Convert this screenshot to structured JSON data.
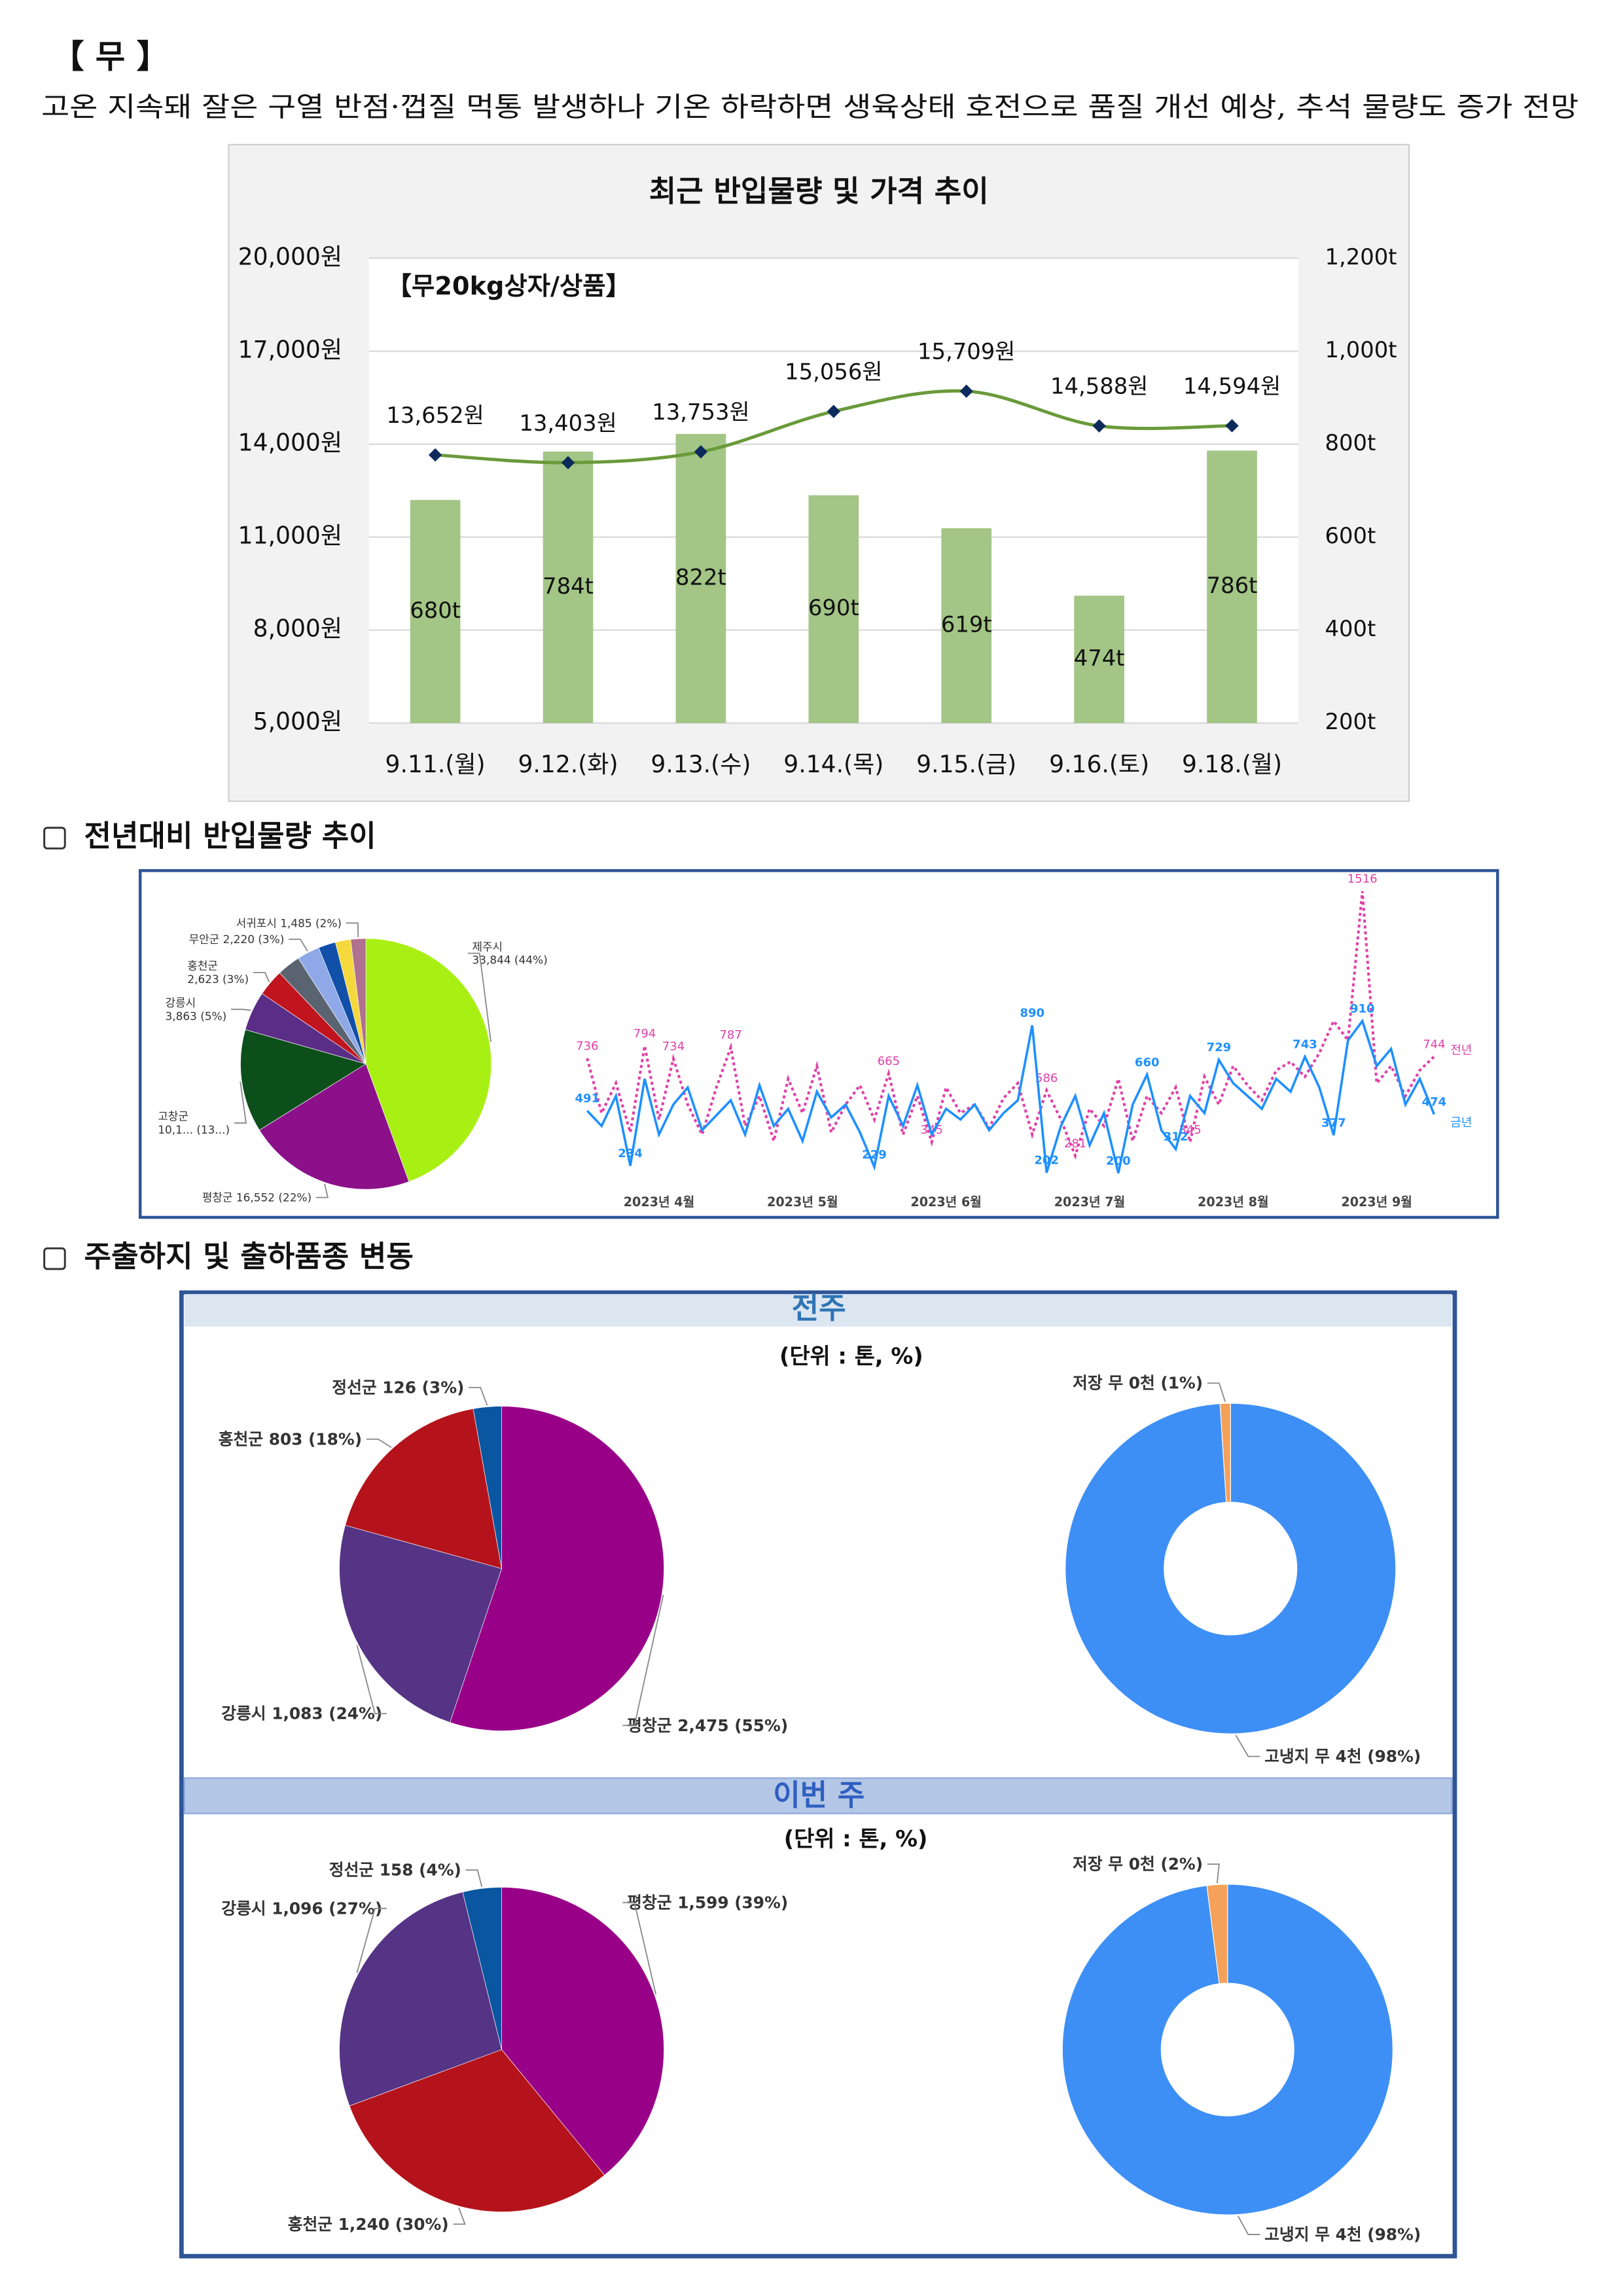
{
  "document": {
    "title": "【 무 】",
    "summary": "고온 지속돼 잘은 구열 반점·껍질 먹통 발생하나 기온 하락하면 생육상태 호전으로 품질 개선 예상, 추석 물량도 증가 전망",
    "sections": [
      "전년대비 반입물량 추이",
      "주출하지 및 출하품종 변동"
    ],
    "panels": [
      {
        "title": "전주",
        "unit": "(단위 : 톤, %)"
      },
      {
        "title": "이번 주",
        "unit": "(단위 : 톤, %)"
      }
    ]
  },
  "chart_data": [
    {
      "type": "bar_line",
      "title": "최근 반입물량 및 가격 추이",
      "subtitle": "【무20kg상자/상품】",
      "categories": [
        "9.11.(월)",
        "9.12.(화)",
        "9.13.(수)",
        "9.14.(목)",
        "9.15.(금)",
        "9.16.(토)",
        "9.18.(월)"
      ],
      "ylim": [
        5000,
        20000
      ],
      "yticks": [
        {
          "value": 5000,
          "label": "5,000원"
        },
        {
          "value": 8000,
          "label": "8,000원"
        },
        {
          "value": 11000,
          "label": "11,000원"
        },
        {
          "value": 14000,
          "label": "14,000원"
        },
        {
          "value": 17000,
          "label": "17,000원"
        },
        {
          "value": 20000,
          "label": "20,000원"
        }
      ],
      "y2lim": [
        200,
        1200
      ],
      "y2ticks": [
        {
          "value": 200,
          "label": "200t"
        },
        {
          "value": 400,
          "label": "400t"
        },
        {
          "value": 600,
          "label": "600t"
        },
        {
          "value": 800,
          "label": "800t"
        },
        {
          "value": 1000,
          "label": "1,000t"
        },
        {
          "value": 1200,
          "label": "1,200t"
        }
      ],
      "grid": true,
      "series": [
        {
          "type": "bar",
          "axis": "y2",
          "color": "#a3c585",
          "values": [
            680,
            784,
            822,
            690,
            619,
            474,
            786
          ],
          "value_labels": [
            "680t",
            "784t",
            "822t",
            "690t",
            "619t",
            "474t",
            "786t"
          ]
        },
        {
          "type": "line",
          "axis": "y",
          "color": "#6a9a3a",
          "marker_color": "#0d2a5c",
          "values": [
            13652,
            13403,
            13753,
            15056,
            15709,
            14588,
            14594
          ],
          "value_labels": [
            "13,652원",
            "13,403원",
            "13,753원",
            "15,056원",
            "15,709원",
            "14,588원",
            "14,594원"
          ]
        }
      ]
    },
    {
      "type": "pie",
      "categories": [
        "제주시",
        "평창군",
        "고창군",
        "강릉시",
        "홍천군",
        null,
        "무안군",
        null,
        null,
        "서귀포시"
      ],
      "values": [
        33844,
        16552,
        10100,
        3863,
        2623,
        2300,
        2220,
        1700,
        1500,
        1485
      ],
      "value_labels": [
        "33,844 (44%)",
        "16,552 (22%)",
        "10,1... (13...)",
        "3,863 (5%)",
        "2,623 (3%)",
        null,
        "2,220 (3%)",
        null,
        null,
        "1,485 (2%)"
      ],
      "colors": [
        "#a8f013",
        "#8b108a",
        "#0d4f1b",
        "#5a2d86",
        "#c0141e",
        "#5a6470",
        "#8fa8e8",
        "#1050a8",
        "#f4d83c",
        "#b07090"
      ]
    },
    {
      "type": "line",
      "categories": [
        null,
        null,
        null,
        null,
        null,
        "2023년 4월",
        null,
        null,
        null,
        null,
        null,
        null,
        null,
        null,
        null,
        "2023년 5월",
        null,
        null,
        null,
        null,
        null,
        null,
        null,
        null,
        null,
        "2023년 6월",
        null,
        null,
        null,
        null,
        null,
        null,
        null,
        null,
        null,
        "2023년 7월",
        null,
        null,
        null,
        null,
        null,
        null,
        null,
        null,
        null,
        "2023년 8월",
        null,
        null,
        null,
        null,
        null,
        null,
        null,
        null,
        null,
        "2023년 9월",
        null,
        null,
        null,
        null
      ],
      "series": [
        {
          "name": "전년",
          "color": "#e040a8",
          "style": "dotted",
          "values": [
            736,
            480,
            620,
            390,
            794,
            450,
            734,
            520,
            380,
            600,
            787,
            420,
            560,
            350,
            640,
            480,
            700,
            390,
            520,
            610,
            450,
            665,
            380,
            560,
            345,
            600,
            480,
            520,
            410,
            550,
            620,
            380,
            586,
            450,
            281,
            500,
            420,
            640,
            350,
            560,
            480,
            600,
            345,
            650,
            520,
            700,
            610,
            540,
            680,
            720,
            650,
            760,
            910,
            820,
            1516,
            620,
            700,
            560,
            680,
            744
          ],
          "value_labels": [
            "736",
            null,
            null,
            null,
            "794",
            null,
            "734",
            null,
            null,
            null,
            "787",
            null,
            null,
            null,
            null,
            null,
            null,
            null,
            null,
            null,
            null,
            "665",
            null,
            null,
            "345",
            null,
            null,
            null,
            null,
            null,
            null,
            null,
            "586",
            null,
            "281",
            null,
            null,
            null,
            null,
            null,
            null,
            null,
            "345",
            null,
            null,
            null,
            null,
            null,
            null,
            null,
            null,
            null,
            null,
            null,
            "1516",
            null,
            null,
            null,
            null,
            "744"
          ]
        },
        {
          "name": "금년",
          "color": "#1e90ff",
          "style": "solid",
          "values": [
            491,
            420,
            560,
            234,
            640,
            380,
            520,
            600,
            400,
            470,
            540,
            380,
            610,
            420,
            500,
            350,
            580,
            460,
            520,
            390,
            229,
            560,
            420,
            610,
            380,
            500,
            450,
            520,
            400,
            480,
            540,
            890,
            202,
            420,
            560,
            330,
            480,
            200,
            520,
            660,
            400,
            312,
            560,
            480,
            729,
            620,
            560,
            500,
            640,
            580,
            743,
            600,
            377,
            820,
            910,
            700,
            780,
            520,
            640,
            474
          ],
          "value_labels": [
            "491",
            null,
            null,
            "234",
            null,
            null,
            null,
            null,
            null,
            null,
            null,
            null,
            null,
            null,
            null,
            null,
            null,
            null,
            null,
            null,
            "229",
            null,
            null,
            null,
            null,
            null,
            null,
            null,
            null,
            null,
            null,
            "890",
            "202",
            null,
            null,
            null,
            null,
            "200",
            null,
            "660",
            null,
            "312",
            null,
            null,
            "729",
            null,
            null,
            null,
            null,
            null,
            "743",
            null,
            "377",
            null,
            "910",
            null,
            null,
            null,
            null,
            "474"
          ]
        }
      ]
    },
    {
      "type": "pie",
      "categories": [
        "평창군",
        "강릉시",
        "홍천군",
        "정선군"
      ],
      "values": [
        2475,
        1083,
        803,
        126
      ],
      "value_labels": [
        "2,475 (55%)",
        "1,083 (24%)",
        "803 (18%)",
        "126 (3%)"
      ],
      "colors": [
        "#990088",
        "#553385",
        "#b5131b",
        "#0a56a0"
      ]
    },
    {
      "type": "donut",
      "categories": [
        "고냉지 무",
        "저장 무"
      ],
      "values": [
        98,
        1
      ],
      "value_labels": [
        "4천 (98%)",
        "0천 (1%)"
      ],
      "colors": [
        "#3d8ff5",
        "#f4a15a"
      ]
    },
    {
      "type": "pie",
      "categories": [
        "평창군",
        "홍천군",
        "강릉시",
        "정선군"
      ],
      "values": [
        1599,
        1240,
        1096,
        158
      ],
      "value_labels": [
        "1,599 (39%)",
        "1,240 (30%)",
        "1,096 (27%)",
        "158 (4%)"
      ],
      "colors": [
        "#990088",
        "#b5131b",
        "#553385",
        "#0a56a0"
      ]
    },
    {
      "type": "donut",
      "categories": [
        "고냉지 무",
        "저장 무"
      ],
      "values": [
        98,
        2
      ],
      "value_labels": [
        "4천 (98%)",
        "0천 (2%)"
      ],
      "colors": [
        "#3d8ff5",
        "#f4a15a"
      ]
    }
  ]
}
